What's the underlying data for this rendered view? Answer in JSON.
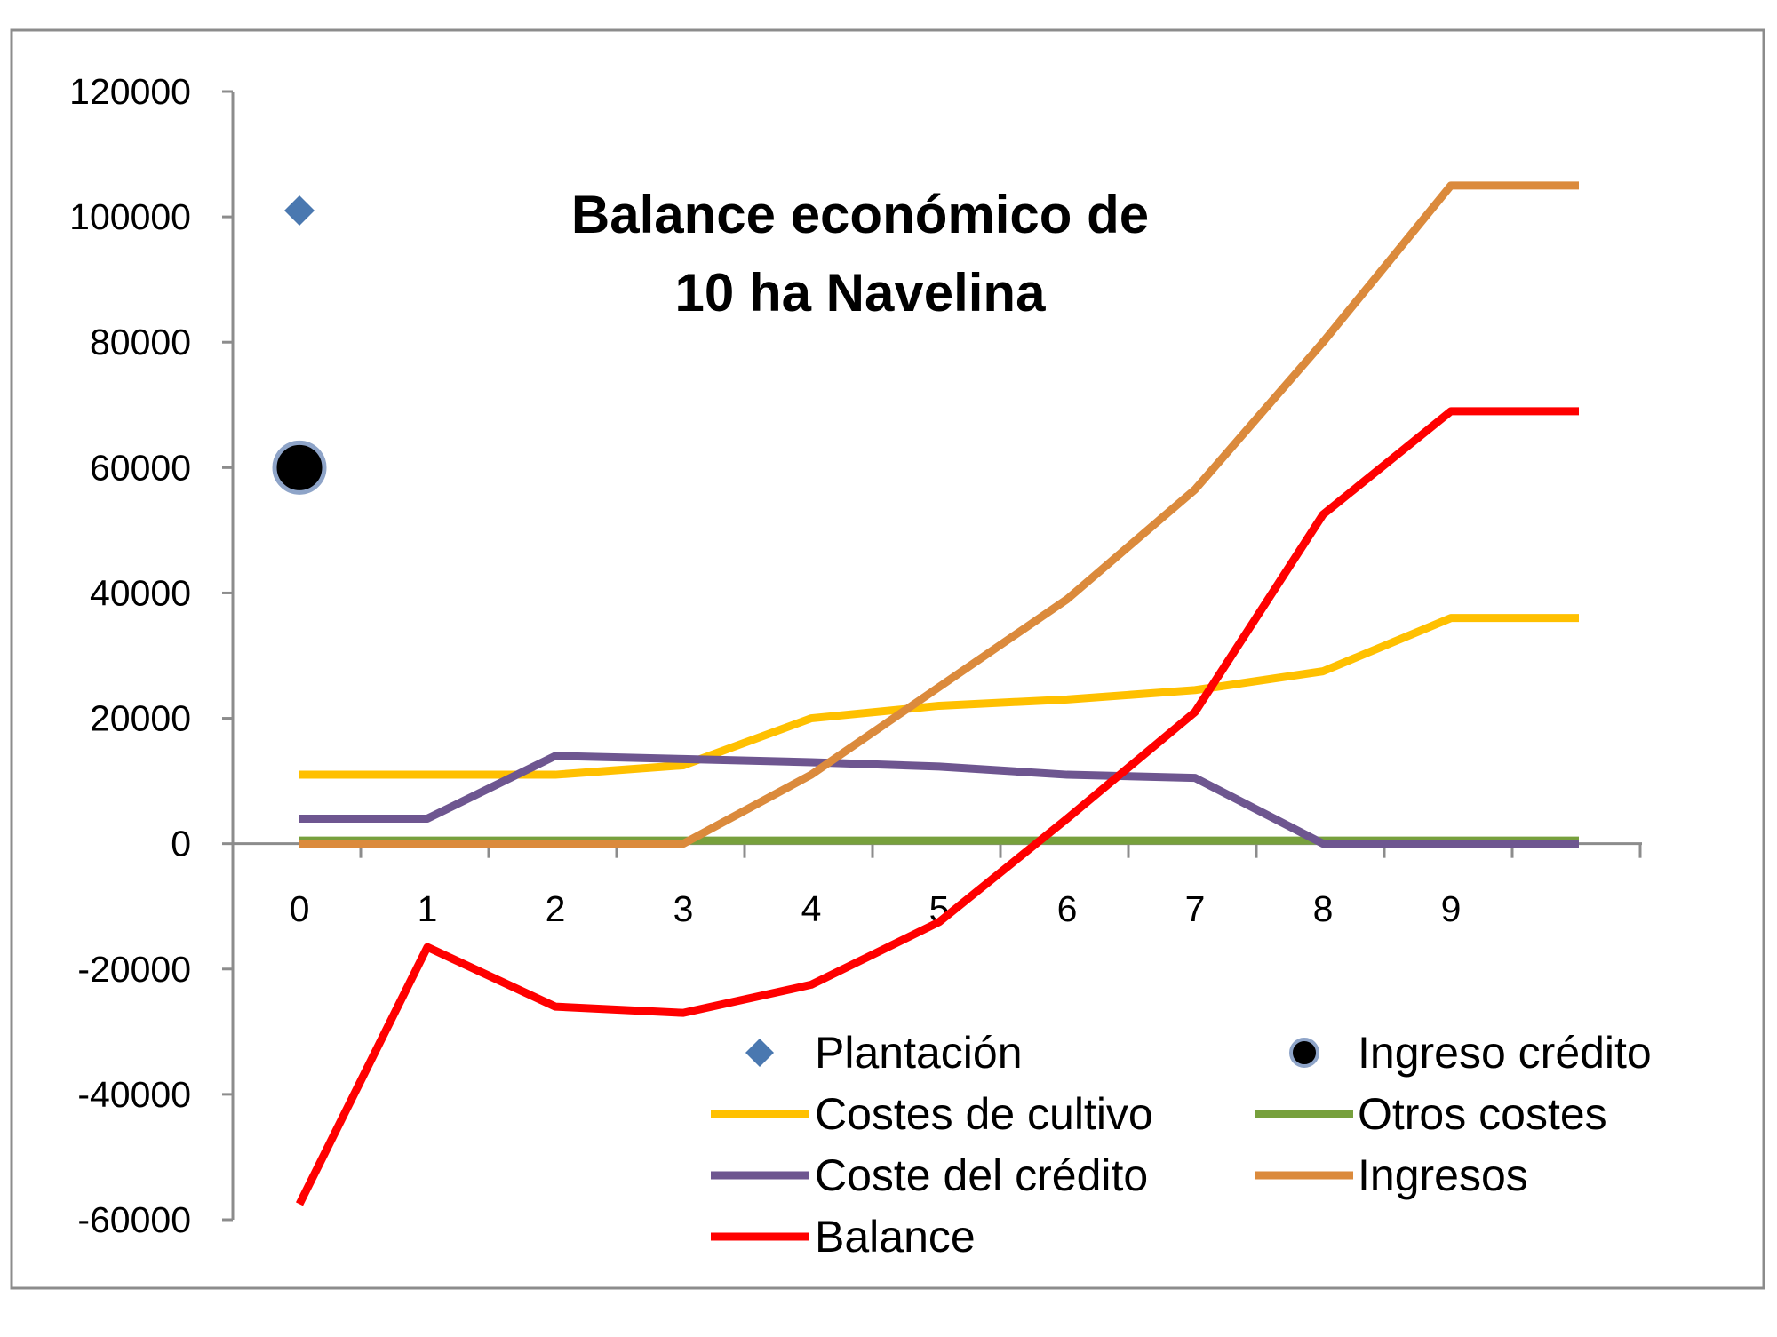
{
  "chart_data": {
    "type": "line",
    "title_lines": [
      "Balance económico de",
      "10 ha Navelina"
    ],
    "xlabel": "",
    "ylabel": "",
    "x_tick_labels": [
      "0",
      "1",
      "2",
      "3",
      "4",
      "5",
      "6",
      "7",
      "8",
      "9"
    ],
    "ylim": [
      -60000,
      120000
    ],
    "y_ticks": [
      -60000,
      -40000,
      -20000,
      0,
      20000,
      40000,
      60000,
      80000,
      100000,
      120000
    ],
    "grid": false,
    "legend_position": "bottom-right",
    "series": [
      {
        "name": "Plantación",
        "kind": "marker-diamond",
        "color": "#4a78b0",
        "x": [
          0
        ],
        "y": [
          101000
        ]
      },
      {
        "name": "Ingreso crédito",
        "kind": "marker-circle",
        "color": "#000000",
        "x": [
          0
        ],
        "y": [
          60000
        ]
      },
      {
        "name": "Costes de cultivo",
        "kind": "line",
        "color": "#ffc000",
        "x": [
          0,
          1,
          2,
          3,
          4,
          5,
          6,
          7,
          8,
          9,
          10
        ],
        "y": [
          11000,
          11000,
          11000,
          12500,
          20000,
          22000,
          23000,
          24500,
          27500,
          36000,
          36000
        ]
      },
      {
        "name": "Otros costes",
        "kind": "line",
        "color": "#77a03d",
        "x": [
          0,
          1,
          2,
          3,
          4,
          5,
          6,
          7,
          8,
          9,
          10
        ],
        "y": [
          500,
          500,
          500,
          500,
          500,
          500,
          500,
          500,
          500,
          500,
          500
        ]
      },
      {
        "name": "Coste del crédito",
        "kind": "line",
        "color": "#6e5690",
        "x": [
          0,
          1,
          2,
          3,
          4,
          5,
          6,
          7,
          8,
          9,
          10
        ],
        "y": [
          4000,
          4000,
          14000,
          13500,
          13000,
          12300,
          11000,
          10500,
          0,
          0,
          0
        ]
      },
      {
        "name": "Ingresos",
        "kind": "line",
        "color": "#db8a3c",
        "x": [
          0,
          1,
          2,
          3,
          4,
          5,
          6,
          7,
          8,
          9,
          10
        ],
        "y": [
          0,
          0,
          0,
          0,
          11000,
          25000,
          39000,
          56500,
          80000,
          105000,
          105000
        ]
      },
      {
        "name": "Balance",
        "kind": "line",
        "color": "#ff0000",
        "x": [
          0,
          1,
          2,
          3,
          4,
          5,
          6,
          7,
          8,
          9,
          10
        ],
        "y": [
          -57500,
          -16500,
          -26000,
          -27000,
          -22500,
          -12500,
          4000,
          21000,
          52500,
          69000,
          69000
        ]
      }
    ]
  }
}
